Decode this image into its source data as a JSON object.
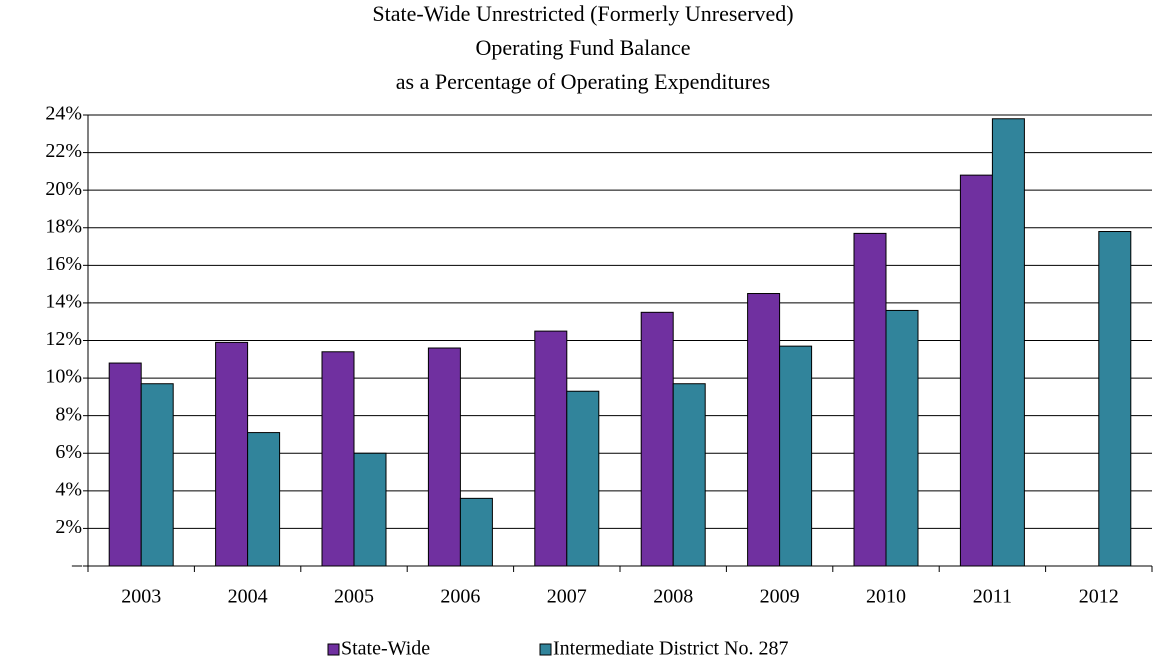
{
  "chart_data": {
    "type": "bar",
    "title": [
      "State-Wide Unrestricted (Formerly Unreserved)",
      "Operating Fund Balance",
      "as a Percentage of Operating Expenditures"
    ],
    "categories": [
      "2003",
      "2004",
      "2005",
      "2006",
      "2007",
      "2008",
      "2009",
      "2010",
      "2011",
      "2012"
    ],
    "series": [
      {
        "name": "State-Wide",
        "color": "#7030a0",
        "values": [
          10.8,
          11.9,
          11.4,
          11.6,
          12.5,
          13.5,
          14.5,
          17.7,
          20.8,
          null
        ]
      },
      {
        "name": "Intermediate District No. 287",
        "color": "#31849b",
        "values": [
          9.7,
          7.1,
          6.0,
          3.6,
          9.3,
          9.7,
          11.7,
          13.6,
          23.8,
          17.8
        ]
      }
    ],
    "ylim": [
      0,
      24
    ],
    "yticks": [
      {
        "value": 0,
        "label": "–"
      },
      {
        "value": 2,
        "label": "2%"
      },
      {
        "value": 4,
        "label": "4%"
      },
      {
        "value": 6,
        "label": "6%"
      },
      {
        "value": 8,
        "label": "8%"
      },
      {
        "value": 10,
        "label": "10%"
      },
      {
        "value": 12,
        "label": "12%"
      },
      {
        "value": 14,
        "label": "14%"
      },
      {
        "value": 16,
        "label": "16%"
      },
      {
        "value": 18,
        "label": "18%"
      },
      {
        "value": 20,
        "label": "20%"
      },
      {
        "value": 22,
        "label": "22%"
      },
      {
        "value": 24,
        "label": "24%"
      }
    ],
    "grid": true,
    "legend": "bottom"
  }
}
